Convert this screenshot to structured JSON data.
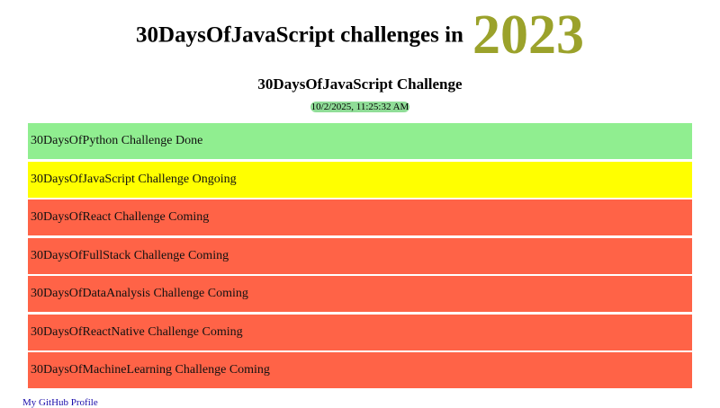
{
  "header": {
    "title": "30DaysOfJavaScript challenges in",
    "year": "2023",
    "subtitle": "30DaysOfJavaScript Challenge",
    "datetime": "10/2/2025, 11:25:32 AM"
  },
  "challenges": [
    {
      "label": "30DaysOfPython Challenge Done",
      "color": "#90ee90"
    },
    {
      "label": "30DaysOfJavaScript Challenge Ongoing",
      "color": "#ffff00"
    },
    {
      "label": "30DaysOfReact Challenge Coming",
      "color": "#ff6347"
    },
    {
      "label": "30DaysOfFullStack Challenge Coming",
      "color": "#ff6347"
    },
    {
      "label": "30DaysOfDataAnalysis Challenge Coming",
      "color": "#ff6347"
    },
    {
      "label": "30DaysOfReactNative Challenge Coming",
      "color": "#ff6347"
    },
    {
      "label": "30DaysOfMachineLearning Challenge Coming",
      "color": "#ff6347"
    }
  ],
  "footer": {
    "link": "My GitHub Profile"
  }
}
